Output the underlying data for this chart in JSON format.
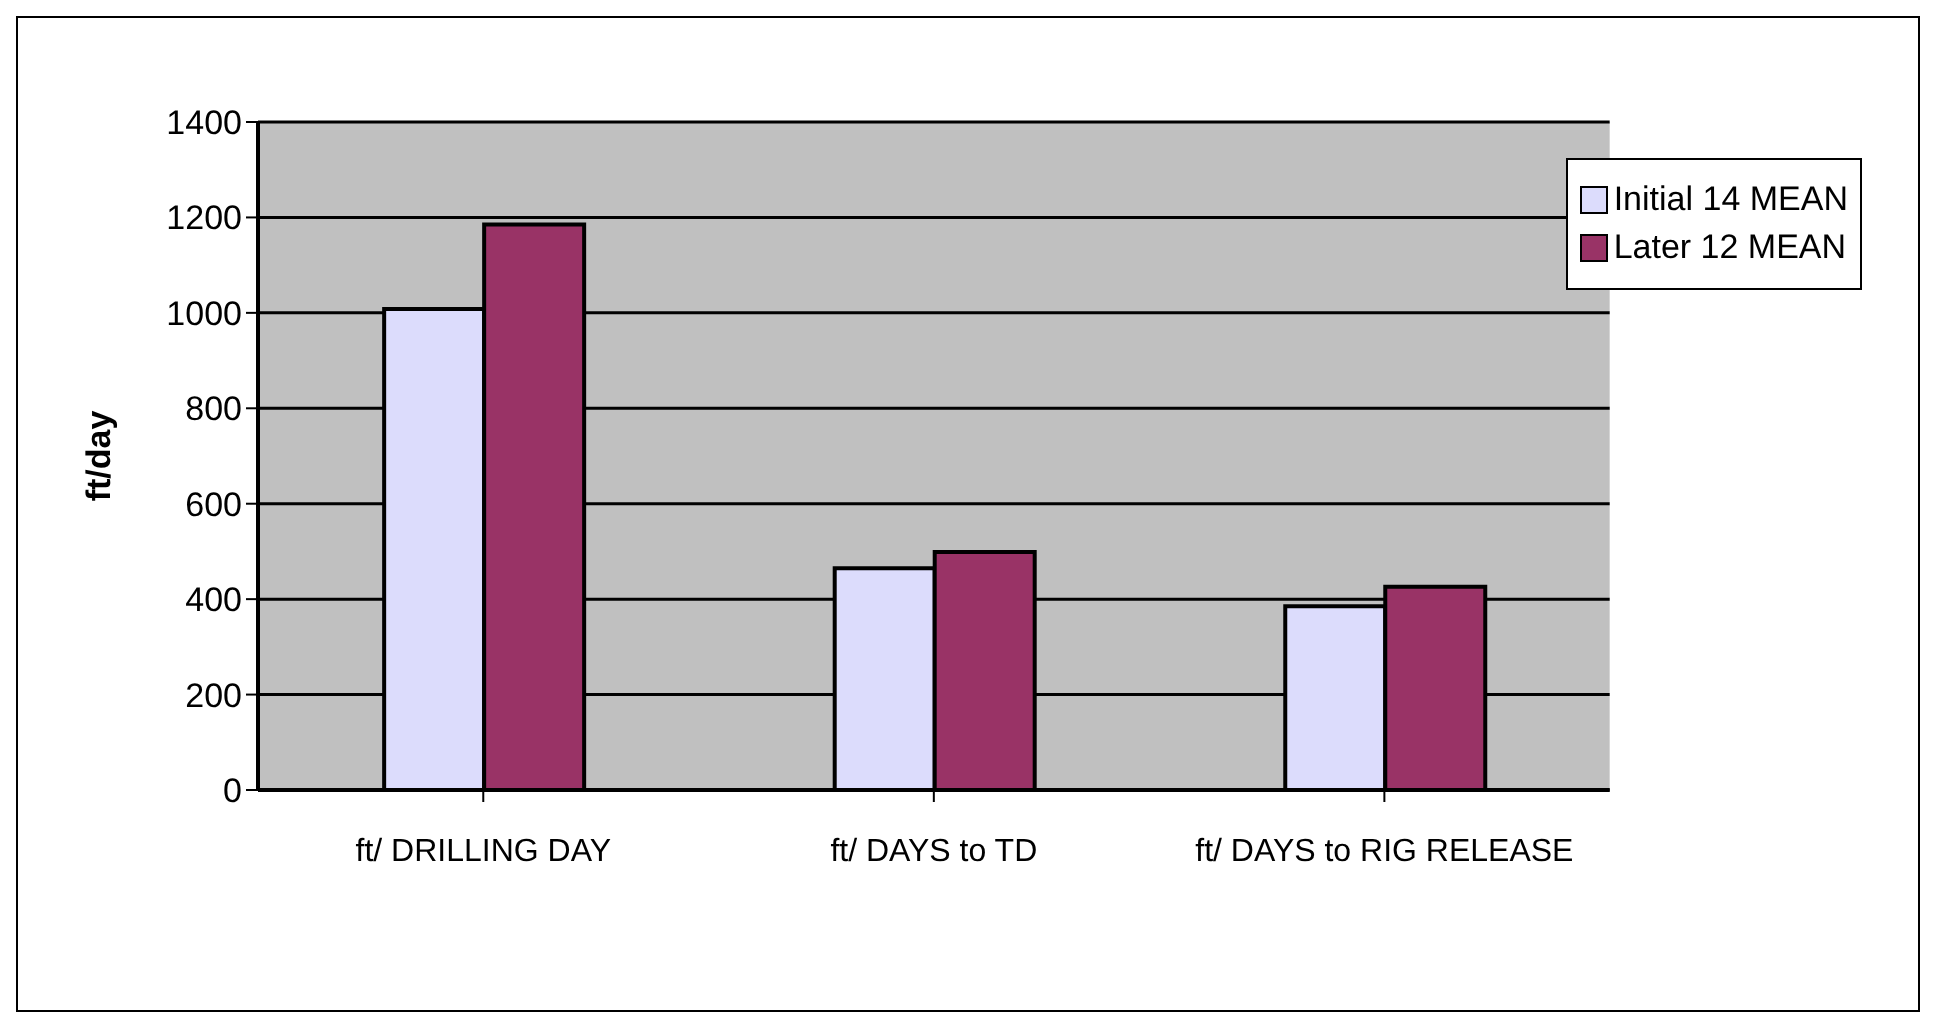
{
  "chart_data": {
    "type": "bar",
    "ylabel": "ft/day",
    "categories": [
      "ft/ DRILLING DAY",
      "ft/ DAYS to TD",
      "ft/ DAYS to RIG RELEASE"
    ],
    "series": [
      {
        "name": "Initial 14 MEAN",
        "color": "#dcdcfc",
        "values": [
          1008,
          465,
          385
        ]
      },
      {
        "name": "Later 12 MEAN",
        "color": "#993366",
        "values": [
          1185,
          499,
          426
        ]
      }
    ],
    "ylim": [
      0,
      1400
    ],
    "yticks": [
      0,
      200,
      400,
      600,
      800,
      1000,
      1200,
      1400
    ],
    "grid": "y",
    "legend": "top right"
  }
}
